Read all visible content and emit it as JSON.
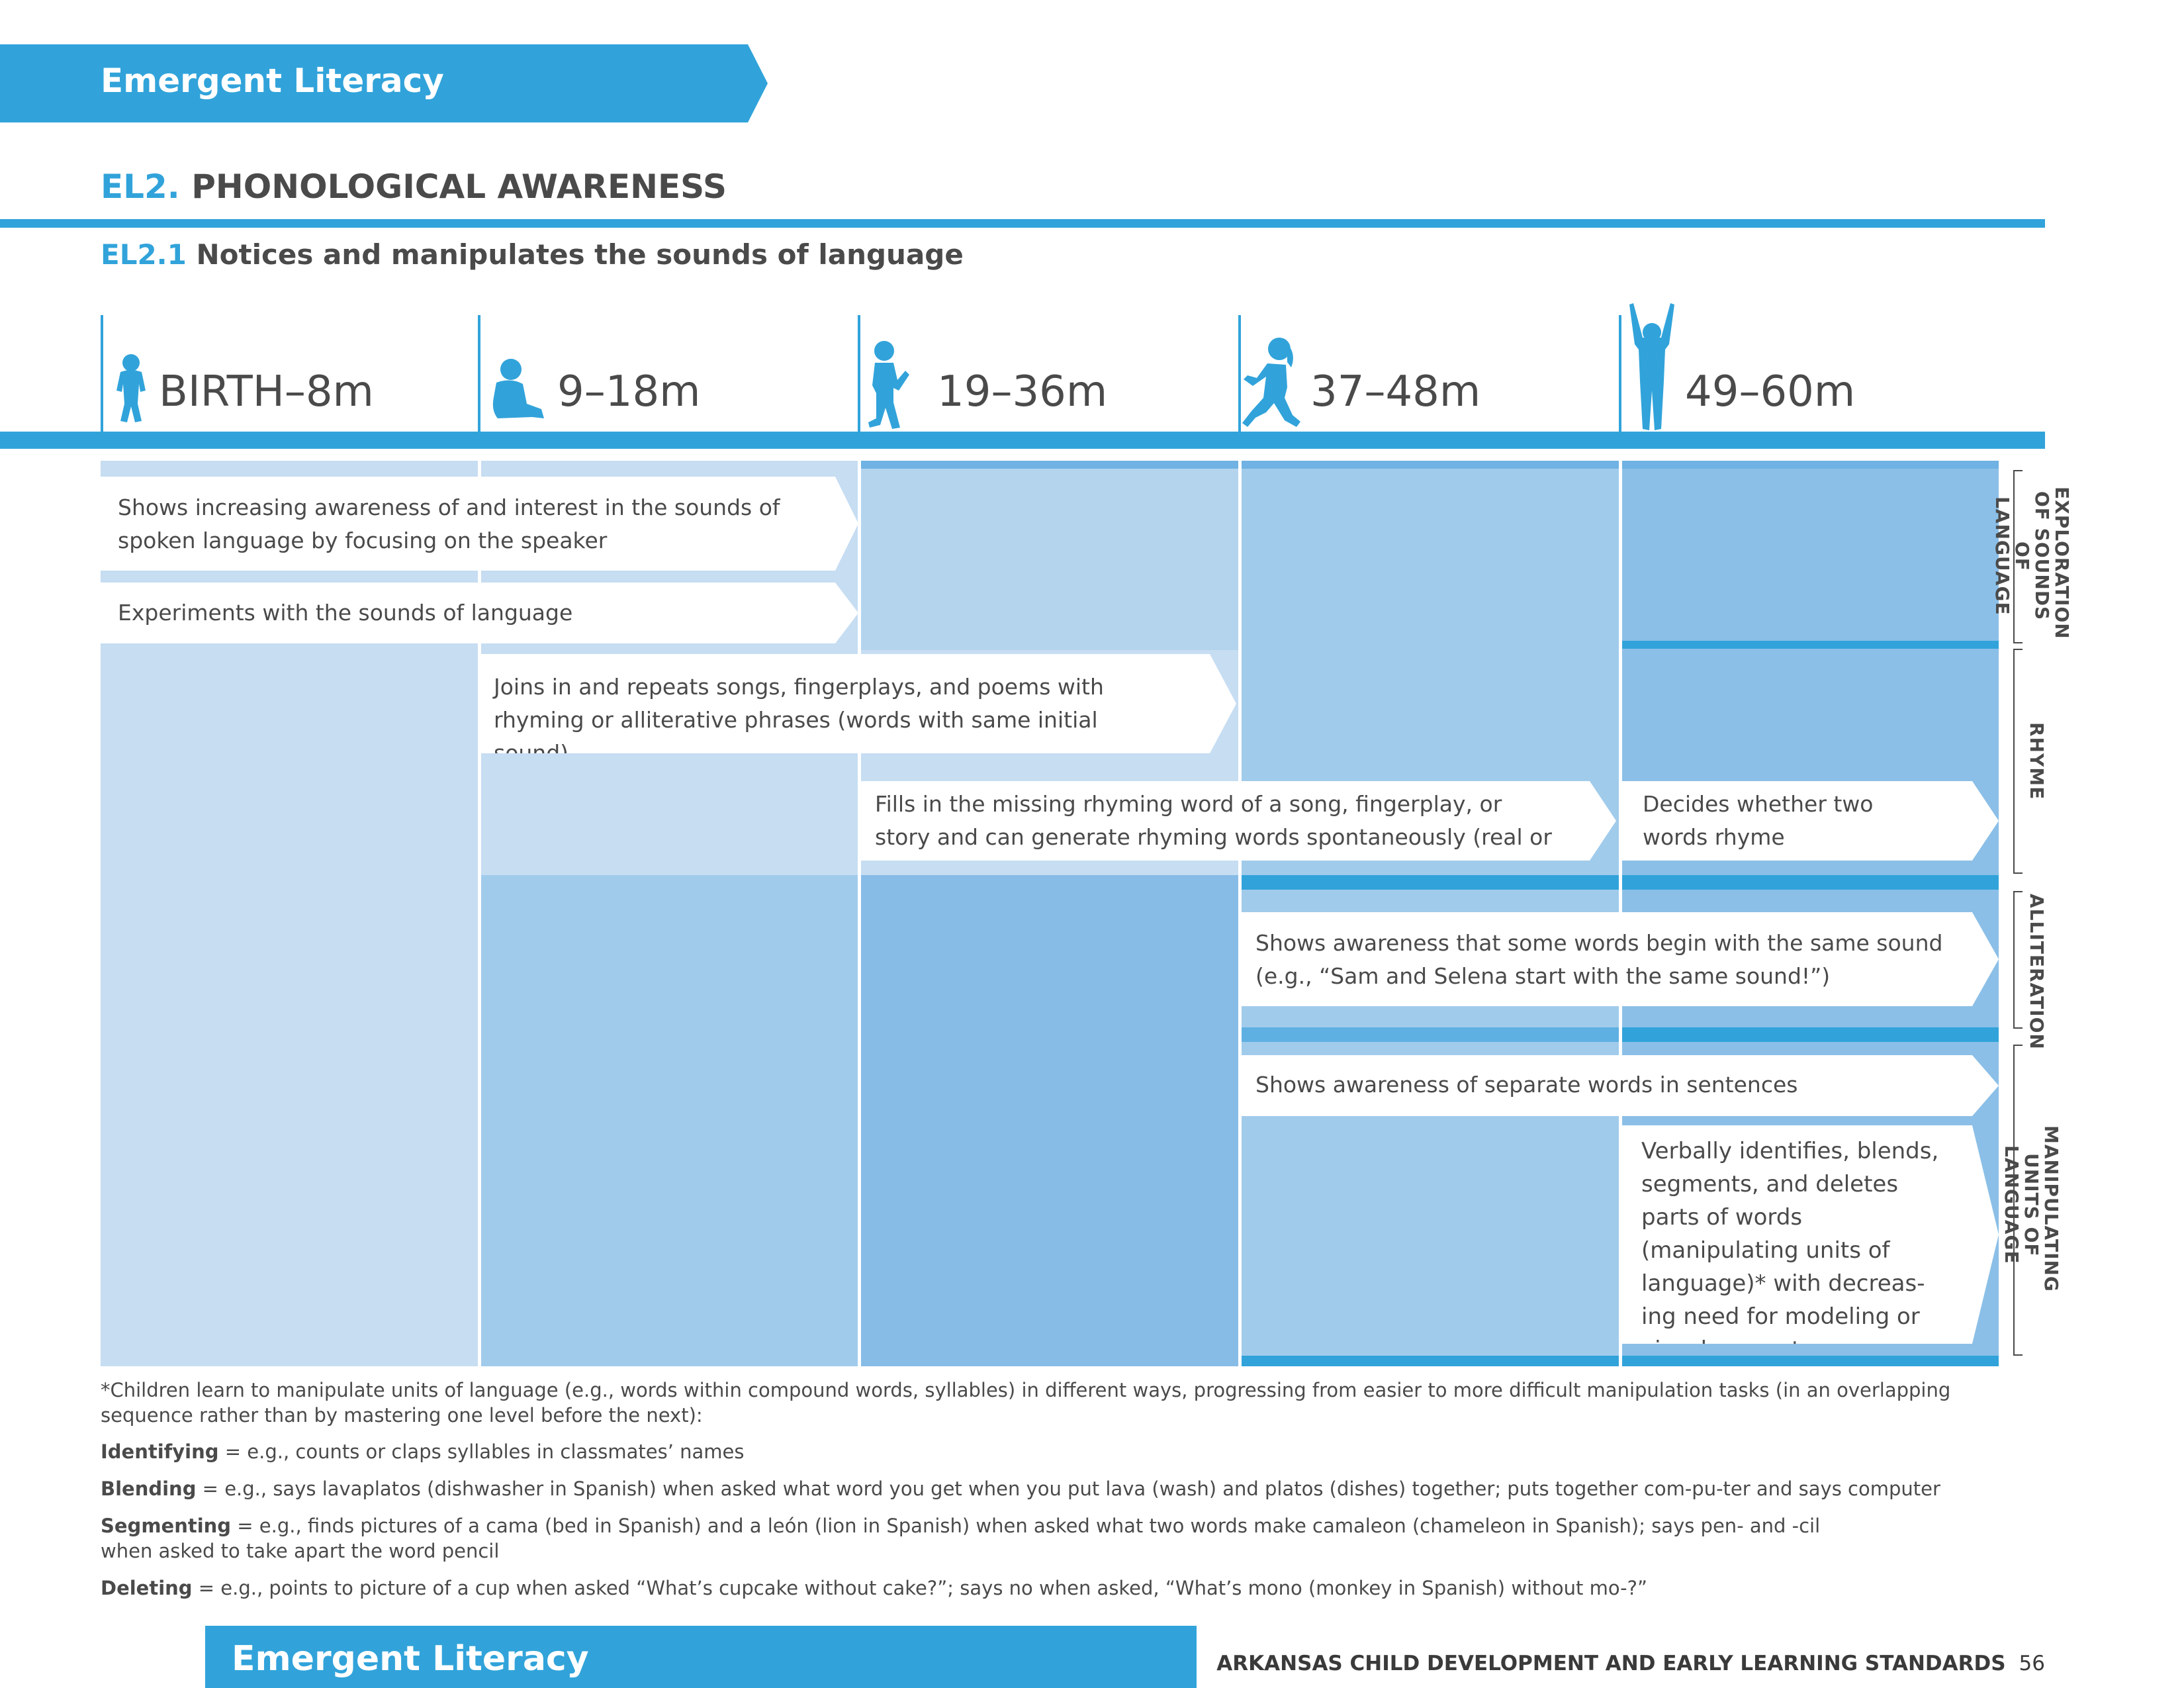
{
  "header": {
    "banner": "Emergent Literacy"
  },
  "section": {
    "code": "EL2.",
    "title": "PHONOLOGICAL AWARENESS"
  },
  "subsection": {
    "code": "EL2.1",
    "title": "Notices and manipulates the sounds of language"
  },
  "age_columns": [
    {
      "label": "BIRTH–8m",
      "icon": "infant-icon"
    },
    {
      "label": "9–18m",
      "icon": "sitting-baby-icon"
    },
    {
      "label": "19–36m",
      "icon": "walking-toddler-icon"
    },
    {
      "label": "37–48m",
      "icon": "running-child-icon"
    },
    {
      "label": "49–60m",
      "icon": "arms-up-child-icon"
    }
  ],
  "indicators": [
    {
      "text": "Shows increasing awareness of and interest in the sounds of spoken language by focusing on the speaker"
    },
    {
      "text": "Experiments with the sounds of language"
    },
    {
      "text": "Joins in and repeats songs, fingerplays, and poems with rhyming or alliterative phrases (words with same initial sound)"
    },
    {
      "text": "Fills in the missing rhyming word of a song, fingerplay, or story and can generate rhyming words spontaneously (real or nonsense words)"
    },
    {
      "text": "Decides whether two words rhyme"
    },
    {
      "text": "Shows awareness that some words begin with the same sound (e.g., “Sam and Selena start with the same sound!”)"
    },
    {
      "text": "Shows awareness of separate words in sentences"
    },
    {
      "text": "Verbally identifies, blends, segments, and deletes parts of words (manipulating units of language)*  with decreas-ing need for modeling or visual supports"
    }
  ],
  "categories": [
    {
      "label": "EXPLORATION OF SOUNDS OF LANGUAGE"
    },
    {
      "label": "RHYME"
    },
    {
      "label": "ALLITERATION"
    },
    {
      "label": "MANIPULATING UNITS OF LANGUAGE"
    }
  ],
  "footnotes": {
    "intro": "*Children learn to manipulate units of language (e.g., words within compound words, syllables) in different ways, progressing from easier to more difficult manipulation tasks (in an overlapping sequence rather than by mastering one level before the next):",
    "identifying_term": "Identifying",
    "identifying_text": " = e.g., counts or claps syllables in classmates’ names",
    "blending_term": "Blending",
    "blending_text": " = e.g., says lavaplatos (dishwasher in Spanish) when asked what word you get when you put lava (wash) and platos (dishes) together; puts together com-pu-ter and says computer",
    "segmenting_term": "Segmenting",
    "segmenting_text": " =  e.g., finds pictures of a cama (bed in Spanish) and a león (lion in Spanish) when asked what two words make camaleon (chameleon in Spanish); says pen- and -cil when asked to take apart the word pencil",
    "deleting_term": "Deleting",
    "deleting_text": " = e.g., points to picture of a cup when asked “What’s cupcake without cake?”; says no when asked, “What’s mono (monkey in Spanish) without mo-?”"
  },
  "footer": {
    "banner": "Emergent Literacy",
    "publication": "ARKANSAS CHILD DEVELOPMENT AND EARLY LEARNING STANDARDS",
    "page_number": "56"
  },
  "colors": {
    "accent": "#31a3da",
    "col1": "#c6ddf2",
    "col2": "#a1cbeb",
    "col3": "#87bce6",
    "col4": "#a1cbeb",
    "col5": "#8bbfe7"
  }
}
